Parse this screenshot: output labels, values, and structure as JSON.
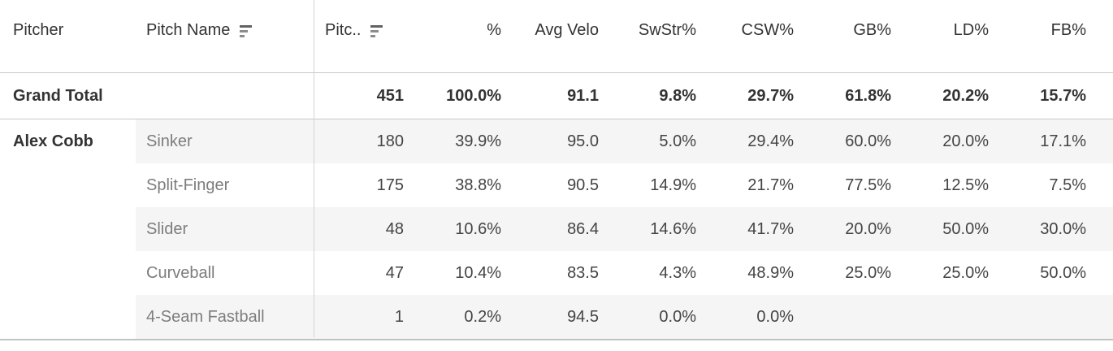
{
  "table": {
    "columns": [
      {
        "label": "Pitcher"
      },
      {
        "label": "Pitch Name",
        "sort_icon": "sort-bars-descending"
      },
      {
        "label": "Pitc..",
        "sort_icon": "sort-bars-descending"
      },
      {
        "label": "%"
      },
      {
        "label": "Avg Velo"
      },
      {
        "label": "SwStr%"
      },
      {
        "label": "CSW%"
      },
      {
        "label": "GB%"
      },
      {
        "label": "LD%"
      },
      {
        "label": "FB%"
      }
    ],
    "grand_total": {
      "label": "Grand Total",
      "values": [
        "451",
        "100.0%",
        "91.1",
        "9.8%",
        "29.7%",
        "61.8%",
        "20.2%",
        "15.7%"
      ]
    },
    "pitcher": "Alex Cobb",
    "rows": [
      {
        "pitch": "Sinker",
        "values": [
          "180",
          "39.9%",
          "95.0",
          "5.0%",
          "29.4%",
          "60.0%",
          "20.0%",
          "17.1%"
        ]
      },
      {
        "pitch": "Split-Finger",
        "values": [
          "175",
          "38.8%",
          "90.5",
          "14.9%",
          "21.7%",
          "77.5%",
          "12.5%",
          "7.5%"
        ]
      },
      {
        "pitch": "Slider",
        "values": [
          "48",
          "10.6%",
          "86.4",
          "14.6%",
          "41.7%",
          "20.0%",
          "50.0%",
          "30.0%"
        ]
      },
      {
        "pitch": "Curveball",
        "values": [
          "47",
          "10.4%",
          "83.5",
          "4.3%",
          "48.9%",
          "25.0%",
          "25.0%",
          "50.0%"
        ]
      },
      {
        "pitch": "4-Seam Fastball",
        "values": [
          "1",
          "0.2%",
          "94.5",
          "0.0%",
          "0.0%",
          "",
          "",
          ""
        ]
      }
    ],
    "colors": {
      "stripe": "#f5f5f5",
      "rule": "#c9c9c9",
      "divider": "#d4d4d4",
      "header_text": "#333333",
      "value_text": "#444444",
      "dim_text": "#7d7d7d"
    }
  }
}
